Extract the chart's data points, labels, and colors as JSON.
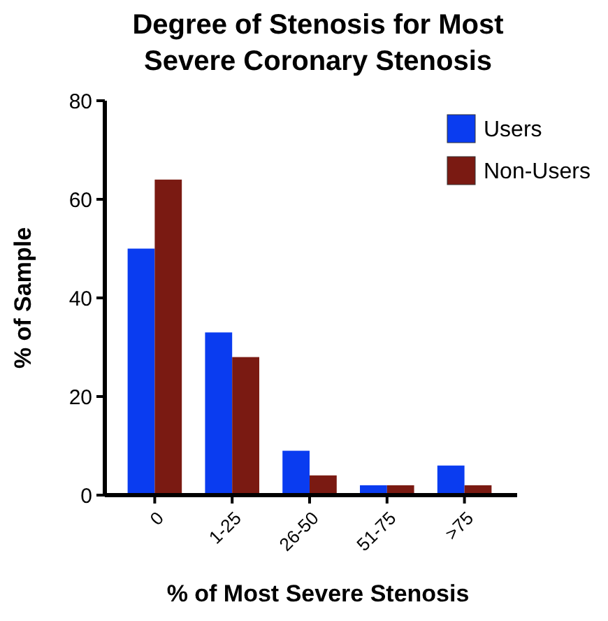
{
  "chart_data": {
    "type": "bar",
    "title": "Degree of Stenosis for Most Severe Coronary Stenosis",
    "xlabel": "% of Most Severe Stenosis",
    "ylabel": "% of Sample",
    "categories": [
      "0",
      "1-25",
      "26-50",
      "51-75",
      ">75"
    ],
    "series": [
      {
        "name": "Users",
        "color": "#0a3cf0",
        "values": [
          50,
          33,
          9,
          2,
          6
        ]
      },
      {
        "name": "Non-Users",
        "color": "#7a1a12",
        "values": [
          64,
          28,
          4,
          2,
          2
        ]
      }
    ],
    "ylim": [
      0,
      80
    ],
    "yticks": [
      0,
      20,
      40,
      60,
      80
    ],
    "legend": "top right",
    "grid": false
  }
}
